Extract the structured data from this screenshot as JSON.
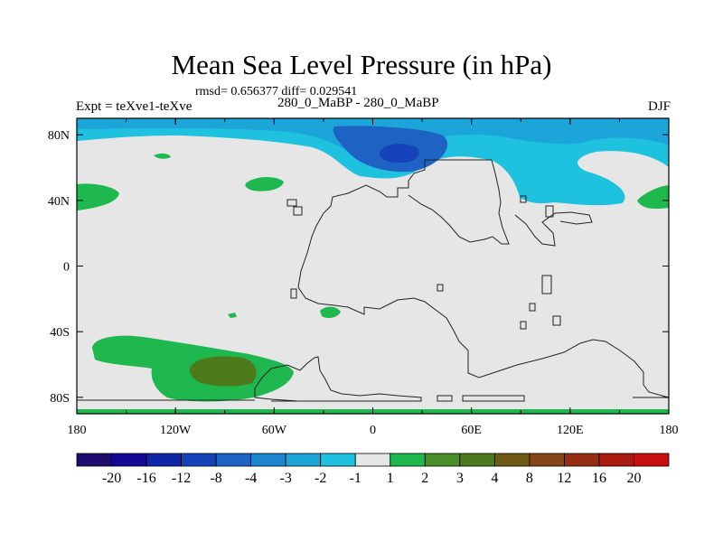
{
  "chart_data": {
    "type": "heatmap",
    "title": "Mean Sea Level Pressure (in hPa)",
    "stats_text": "rmsd= 0.656377 diff= 0.029541",
    "left_label": "Expt = teXve1-teXve",
    "center_label": "280_0_MaBP - 280_0_MaBP",
    "right_label": "DJF",
    "x_ticks": [
      "180",
      "120W",
      "60W",
      "0",
      "60E",
      "120E",
      "180"
    ],
    "y_ticks": [
      "80N",
      "40N",
      "0",
      "40S",
      "80S"
    ],
    "x_range": [
      -180,
      180
    ],
    "y_range": [
      -90,
      90
    ],
    "colorbar": {
      "labels": [
        "-20",
        "-16",
        "-12",
        "-8",
        "-4",
        "-3",
        "-2",
        "-1",
        "1",
        "2",
        "3",
        "4",
        "8",
        "12",
        "16",
        "20"
      ],
      "colors": [
        "#1e0d6e",
        "#140a93",
        "#0f26a8",
        "#1543b9",
        "#1e62c4",
        "#1c86cf",
        "#1ca5d9",
        "#1fc2de",
        "#e6e6e6",
        "#1fb84f",
        "#4a8f2a",
        "#4d7a1a",
        "#6e5a14",
        "#84471a",
        "#962e14",
        "#a91b10",
        "#c70f0f"
      ],
      "neutral_index": 8
    }
  }
}
